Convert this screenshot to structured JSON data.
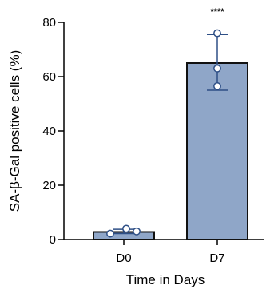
{
  "chart_data": {
    "type": "bar",
    "title": "",
    "xlabel": "Time in Days",
    "ylabel": "SA-β-Gal positive cells (%)",
    "ylim": [
      0,
      80
    ],
    "yticks": [
      0,
      20,
      40,
      60,
      80
    ],
    "categories": [
      "D0",
      "D7"
    ],
    "values": [
      2.8,
      65.0
    ],
    "error_range": [
      [
        2.2,
        3.8
      ],
      [
        55.0,
        75.5
      ]
    ],
    "points": [
      [
        2.2,
        3.0,
        4.0
      ],
      [
        56.5,
        63.0,
        76.0
      ]
    ],
    "significance": [
      "",
      "****"
    ],
    "grid": false,
    "colors": {
      "bar_fill": "#8fa6c8",
      "bar_stroke": "#111111",
      "error_bar": "#2e4f86",
      "point_fill": "#ffffff",
      "point_stroke": "#2e4f86"
    }
  }
}
